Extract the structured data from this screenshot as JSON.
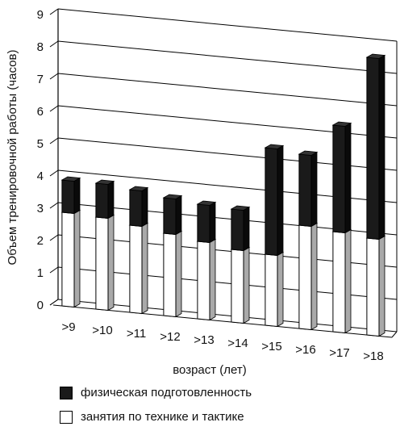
{
  "chart_data": {
    "type": "bar",
    "stacked": true,
    "three_d": true,
    "title": "",
    "ylabel": "Объем тренировочной работы (часов)",
    "xlabel": "возраст (лет)",
    "ylim": [
      0,
      9
    ],
    "yticks": [
      "0",
      "1",
      "2",
      "3",
      "4",
      "5",
      "6",
      "7",
      "8",
      "9"
    ],
    "grid": true,
    "categories": [
      ">9",
      ">10",
      ">11",
      ">12",
      ">13",
      ">14",
      ">15",
      ">16",
      ">17",
      ">18"
    ],
    "series": [
      {
        "name": "занятия по технике и тактике",
        "color": "#ffffff",
        "values": [
          2.9,
          2.85,
          2.7,
          2.55,
          2.4,
          2.25,
          2.2,
          3.2,
          3.1,
          3.0
        ]
      },
      {
        "name": "физическая подготовленность",
        "color": "#1a1a1a",
        "values": [
          1.0,
          1.05,
          1.1,
          1.1,
          1.15,
          1.25,
          3.3,
          2.2,
          3.3,
          5.6
        ]
      }
    ],
    "legend_position": "bottom-left"
  },
  "legend": {
    "items": [
      {
        "label": "физическая подготовленность",
        "color": "#1a1a1a"
      },
      {
        "label": "занятия по технике и тактике",
        "color": "#ffffff"
      }
    ]
  }
}
